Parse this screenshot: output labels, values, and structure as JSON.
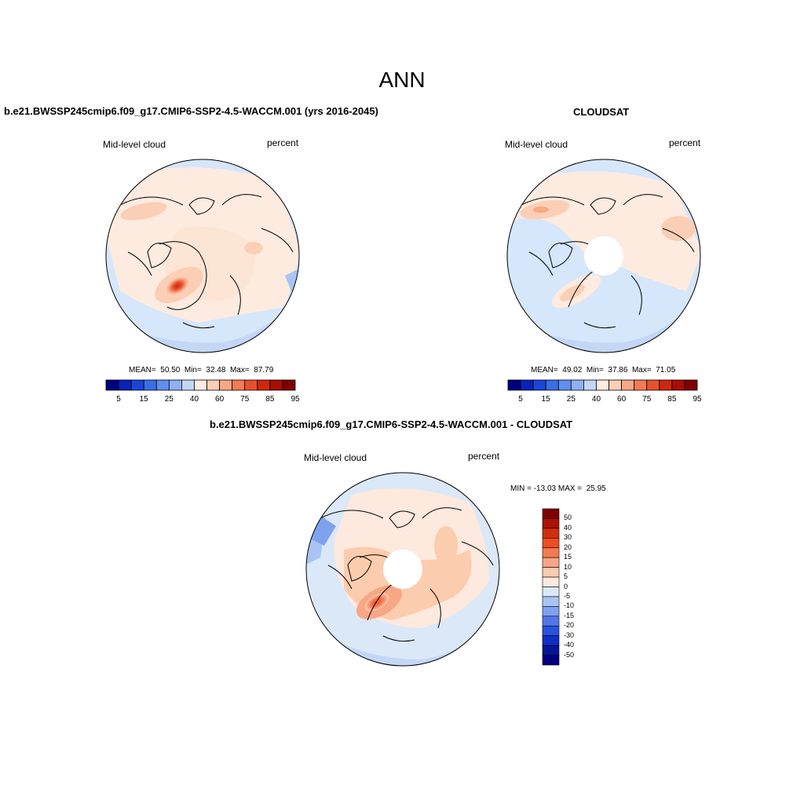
{
  "main_title": "ANN",
  "colors": {
    "seq": [
      "#00007f",
      "#0b22b8",
      "#1a46d8",
      "#3a6ee8",
      "#5f8ff0",
      "#8fb0f2",
      "#c3d7f5",
      "#fdebe0",
      "#fbcfb5",
      "#f7a985",
      "#f37b55",
      "#e9512c",
      "#cf2710",
      "#a80e06",
      "#800000"
    ],
    "diff": [
      "#800000",
      "#aa1204",
      "#d02e0c",
      "#ef4c22",
      "#f47a52",
      "#f8a684",
      "#fcccae",
      "#fde9dd",
      "#dbe8f8",
      "#a9c4f3",
      "#7fa2ef",
      "#4f78ea",
      "#2a52e0",
      "#102fc4",
      "#05169a",
      "#00007f"
    ],
    "land": "#000000"
  },
  "panels": [
    {
      "title": "b.e21.BWSSP245cmip6.f09_g17.CMIP6-SSP2-4.5-WACCM.001 (yrs 2016-2045)",
      "left_label": "Mid-level cloud",
      "right_label": "percent",
      "stats": "MEAN=  50.50  Min=  32.48  Max=  87.79"
    },
    {
      "title": "CLOUDSAT",
      "left_label": "Mid-level cloud",
      "right_label": "percent",
      "stats": "MEAN=  49.02  Min=  37.86  Max=  71.05"
    },
    {
      "title": "b.e21.BWSSP245cmip6.f09_g17.CMIP6-SSP2-4.5-WACCM.001 - CLOUDSAT",
      "left_label": "Mid-level cloud",
      "right_label": "percent",
      "stats": "MIN = -13.03 MAX =  25.95"
    }
  ],
  "colorbar_labels": [
    "5",
    "15",
    "25",
    "40",
    "60",
    "75",
    "85",
    "95"
  ],
  "diff_colorbar_labels": [
    "50",
    "40",
    "30",
    "20",
    "15",
    "10",
    "5",
    "0",
    "-5",
    "-10",
    "-15",
    "-20",
    "-30",
    "-40",
    "-50"
  ]
}
